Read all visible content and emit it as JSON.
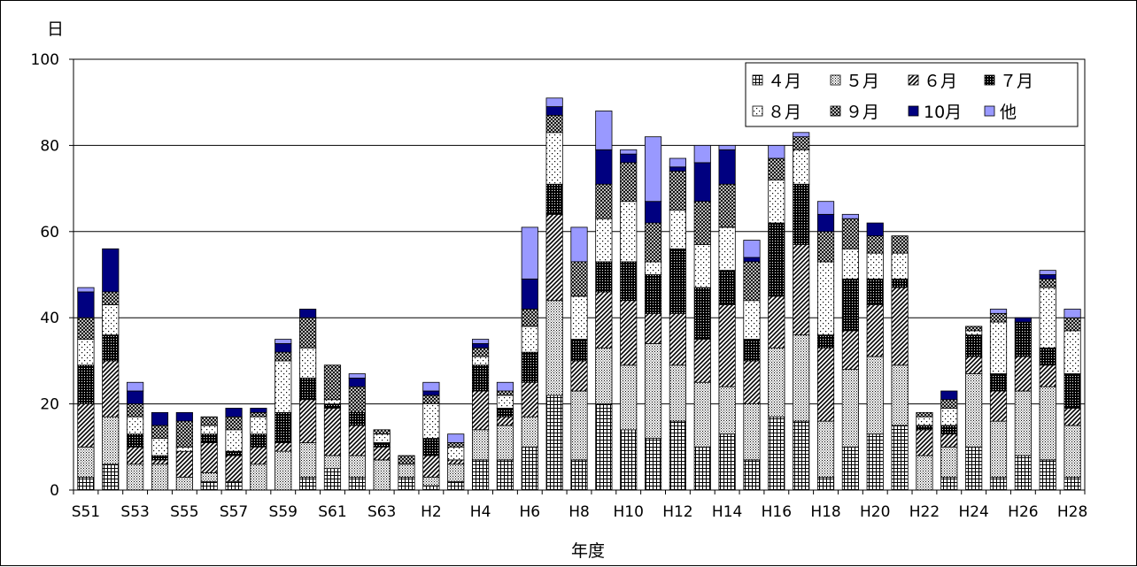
{
  "chart_data": {
    "type": "bar",
    "stacked": true,
    "title": "",
    "xlabel": "年度",
    "ylabel": "日",
    "ylim": [
      0,
      100
    ],
    "yticks": [
      0,
      20,
      40,
      60,
      80,
      100
    ],
    "grid": true,
    "legend_position": "top-right",
    "x_tick_labels": [
      "S51",
      "S53",
      "S55",
      "S57",
      "S59",
      "S61",
      "S63",
      "H2",
      "H4",
      "H6",
      "H8",
      "H10",
      "H12",
      "H14",
      "H16",
      "H18",
      "H20",
      "H22",
      "H24",
      "H26",
      "H28"
    ],
    "categories": [
      "S51",
      "S52",
      "S53",
      "S54",
      "S55",
      "S56",
      "S57",
      "S58",
      "S59",
      "S60",
      "S61",
      "S62",
      "S63",
      "H1",
      "H2",
      "H3",
      "H4",
      "H5",
      "H6",
      "H7",
      "H8",
      "H9",
      "H10",
      "H11",
      "H12",
      "H13",
      "H14",
      "H15",
      "H16",
      "H17",
      "H18",
      "H19",
      "H20",
      "H21",
      "H22",
      "H23",
      "H24",
      "H25",
      "H26",
      "H27",
      "H28"
    ],
    "series": [
      {
        "name": "４月",
        "pattern": "grid",
        "values": [
          3,
          6,
          0,
          0,
          0,
          2,
          2,
          0,
          0,
          3,
          5,
          3,
          0,
          3,
          1,
          2,
          7,
          7,
          10,
          22,
          7,
          20,
          14,
          12,
          16,
          10,
          13,
          7,
          17,
          16,
          3,
          10,
          13,
          15,
          0,
          3,
          10,
          3,
          8,
          7,
          3
        ]
      },
      {
        "name": "５月",
        "pattern": "fine-dots",
        "values": [
          7,
          11,
          6,
          6,
          3,
          2,
          0,
          6,
          9,
          8,
          3,
          5,
          7,
          3,
          2,
          4,
          7,
          8,
          7,
          22,
          16,
          13,
          15,
          22,
          13,
          15,
          11,
          13,
          16,
          20,
          13,
          18,
          18,
          14,
          8,
          7,
          17,
          13,
          15,
          17,
          12
        ]
      },
      {
        "name": "６月",
        "pattern": "diagonal",
        "values": [
          10,
          13,
          4,
          1,
          6,
          7,
          6,
          4,
          2,
          10,
          11,
          7,
          3,
          0,
          5,
          1,
          9,
          2,
          8,
          20,
          7,
          13,
          15,
          7,
          12,
          10,
          19,
          10,
          12,
          21,
          17,
          9,
          12,
          18,
          6,
          3,
          4,
          7,
          8,
          5,
          4
        ]
      },
      {
        "name": "７月",
        "pattern": "dense",
        "values": [
          9,
          6,
          3,
          1,
          0,
          2,
          1,
          3,
          7,
          5,
          1,
          3,
          1,
          0,
          4,
          0,
          6,
          2,
          7,
          7,
          5,
          7,
          9,
          9,
          15,
          12,
          8,
          5,
          17,
          14,
          3,
          12,
          6,
          2,
          1,
          2,
          5,
          4,
          8,
          4,
          8
        ]
      },
      {
        "name": "８月",
        "pattern": "sparse-dots",
        "values": [
          6,
          7,
          4,
          4,
          1,
          2,
          5,
          4,
          12,
          7,
          1,
          0,
          2,
          0,
          8,
          3,
          2,
          3,
          6,
          12,
          10,
          10,
          14,
          3,
          9,
          10,
          10,
          9,
          10,
          8,
          17,
          7,
          6,
          6,
          2,
          4,
          1,
          12,
          0,
          14,
          10
        ]
      },
      {
        "name": "９月",
        "pattern": "crosshatch",
        "values": [
          5,
          3,
          3,
          3,
          6,
          2,
          3,
          1,
          2,
          7,
          8,
          6,
          1,
          2,
          2,
          1,
          2,
          1,
          4,
          4,
          8,
          8,
          9,
          9,
          9,
          10,
          10,
          9,
          5,
          3,
          7,
          7,
          4,
          4,
          1,
          2,
          1,
          2,
          0,
          2,
          3
        ]
      },
      {
        "name": "10月",
        "pattern": "navy",
        "values": [
          6,
          10,
          3,
          3,
          2,
          0,
          2,
          1,
          2,
          2,
          0,
          2,
          0,
          0,
          1,
          0,
          1,
          0,
          7,
          2,
          0,
          8,
          2,
          5,
          1,
          9,
          8,
          1,
          0,
          0,
          4,
          0,
          3,
          0,
          0,
          2,
          0,
          0,
          1,
          1,
          0
        ]
      },
      {
        "name": "他",
        "pattern": "lavender",
        "values": [
          1,
          0,
          2,
          0,
          0,
          0,
          0,
          0,
          1,
          0,
          0,
          1,
          0,
          0,
          2,
          2,
          1,
          2,
          12,
          2,
          8,
          9,
          1,
          15,
          2,
          4,
          1,
          4,
          3,
          1,
          3,
          1,
          0,
          0,
          0,
          0,
          0,
          1,
          0,
          1,
          2
        ]
      }
    ],
    "colors": {
      "navy": "#000080",
      "lavender": "#9999ff",
      "gridline": "#000000"
    }
  }
}
